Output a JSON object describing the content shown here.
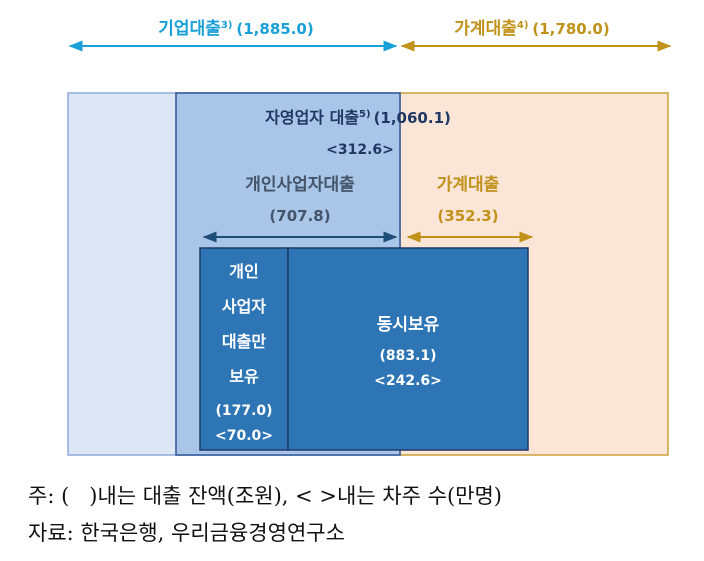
{
  "top": {
    "corporate": {
      "label": "기업대출",
      "sup": "3)",
      "amount": "(1,885.0)"
    },
    "household": {
      "label": "가계대출",
      "sup": "4)",
      "amount": "(1,780.0)"
    }
  },
  "self_employed": {
    "label": "자영업자 대출",
    "sup": "5)",
    "amount": "(1,060.1)",
    "borrowers": "<312.6>"
  },
  "business_loan": {
    "label": "개인사업자대출",
    "amount": "(707.8)"
  },
  "household_loan": {
    "label": "가계대출",
    "amount": "(352.3)"
  },
  "business_only": {
    "lines": [
      "개인",
      "사업자",
      "대출만",
      "보유"
    ],
    "amount": "(177.0)",
    "borrowers": "<70.0>"
  },
  "both": {
    "label": "동시보유",
    "amount": "(883.1)",
    "borrowers": "<242.6>"
  },
  "note": "주: (   )내는 대출 잔액(조원), < >내는 차주 수(만명)",
  "source": "자료: 한국은행, 우리금융경영연구소"
}
